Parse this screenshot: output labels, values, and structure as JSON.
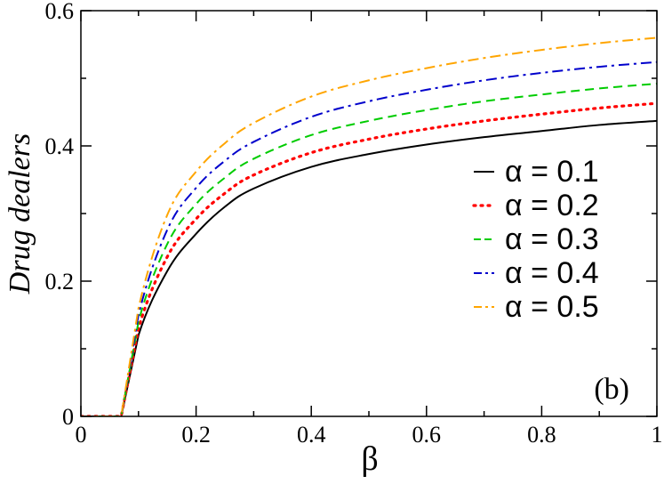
{
  "chart_data": {
    "type": "line",
    "xlabel": "β",
    "ylabel": "Drug dealers",
    "panel_label": "(b)",
    "xlim": [
      0,
      1
    ],
    "ylim": [
      0,
      0.6
    ],
    "x_ticks": [
      0,
      0.2,
      0.4,
      0.6,
      0.8,
      1
    ],
    "x_tick_labels": [
      "0",
      "0.2",
      "0.4",
      "0.6",
      "0.8",
      "1"
    ],
    "y_ticks": [
      0,
      0.2,
      0.4,
      0.6
    ],
    "y_tick_labels": [
      "0",
      "0.2",
      "0.4",
      "0.6"
    ],
    "grid": false,
    "legend_position": "right",
    "x": [
      0,
      0.05,
      0.07,
      0.1,
      0.15,
      0.2,
      0.25,
      0.3,
      0.4,
      0.5,
      0.6,
      0.7,
      0.8,
      0.9,
      1.0
    ],
    "series": [
      {
        "name": "α = 0.1",
        "color": "#000000",
        "dash": "solid",
        "values": [
          0,
          0,
          0,
          0.12,
          0.215,
          0.27,
          0.31,
          0.337,
          0.369,
          0.388,
          0.402,
          0.413,
          0.422,
          0.431,
          0.437
        ]
      },
      {
        "name": "α = 0.2",
        "color": "#ff0000",
        "dash": "dot",
        "values": [
          0,
          0,
          0,
          0.13,
          0.236,
          0.292,
          0.33,
          0.357,
          0.39,
          0.41,
          0.425,
          0.437,
          0.447,
          0.456,
          0.463
        ]
      },
      {
        "name": "α = 0.3",
        "color": "#00cc00",
        "dash": "dash",
        "values": [
          0,
          0,
          0,
          0.14,
          0.255,
          0.314,
          0.353,
          0.381,
          0.416,
          0.437,
          0.453,
          0.466,
          0.476,
          0.485,
          0.492
        ]
      },
      {
        "name": "α = 0.4",
        "color": "#0000cc",
        "dash": "dashdot",
        "values": [
          0,
          0,
          0,
          0.15,
          0.276,
          0.338,
          0.378,
          0.406,
          0.443,
          0.466,
          0.483,
          0.497,
          0.508,
          0.517,
          0.524
        ]
      },
      {
        "name": "α = 0.5",
        "color": "#ffa500",
        "dash": "dashdot",
        "values": [
          0,
          0,
          0,
          0.16,
          0.298,
          0.362,
          0.404,
          0.434,
          0.473,
          0.497,
          0.515,
          0.53,
          0.542,
          0.552,
          0.56
        ]
      }
    ]
  }
}
